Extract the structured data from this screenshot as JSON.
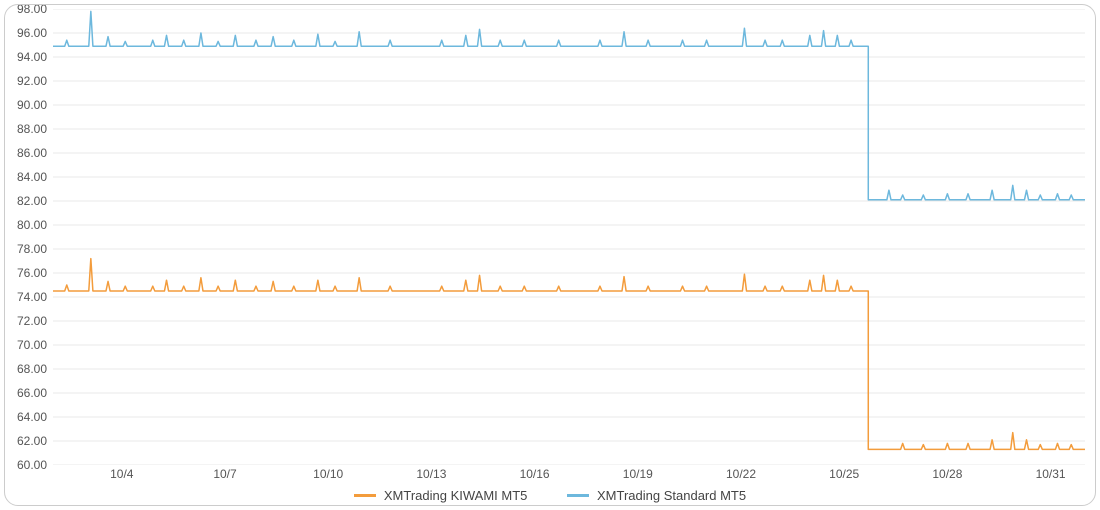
{
  "chart": {
    "type": "line",
    "background_color": "#ffffff",
    "border_color": "#cccccc",
    "grid_color": "#e8e8e8",
    "label_color": "#555555",
    "label_fontsize": 12,
    "ylim": [
      60,
      98
    ],
    "ytick_step": 2,
    "yticks": [
      60,
      62,
      64,
      66,
      68,
      70,
      72,
      74,
      76,
      78,
      80,
      82,
      84,
      86,
      88,
      90,
      92,
      94,
      96,
      98
    ],
    "xlim": [
      0,
      30
    ],
    "xticks": [
      {
        "pos": 2,
        "label": "10/4"
      },
      {
        "pos": 5,
        "label": "10/7"
      },
      {
        "pos": 8,
        "label": "10/10"
      },
      {
        "pos": 11,
        "label": "10/13"
      },
      {
        "pos": 14,
        "label": "10/16"
      },
      {
        "pos": 17,
        "label": "10/19"
      },
      {
        "pos": 20,
        "label": "10/22"
      },
      {
        "pos": 23,
        "label": "10/25"
      },
      {
        "pos": 26,
        "label": "10/28"
      },
      {
        "pos": 29,
        "label": "10/31"
      }
    ],
    "series": [
      {
        "name": "XMTrading KIWAMI MT5",
        "color": "#f39c3c",
        "line_width": 1.5,
        "baseline1": 74.5,
        "baseline2": 61.3,
        "drop_at": 23.7,
        "spikes": [
          {
            "x": 0.4,
            "h": 0.5
          },
          {
            "x": 1.1,
            "h": 2.7
          },
          {
            "x": 1.6,
            "h": 0.8
          },
          {
            "x": 2.1,
            "h": 0.4
          },
          {
            "x": 2.9,
            "h": 0.4
          },
          {
            "x": 3.3,
            "h": 0.9
          },
          {
            "x": 3.8,
            "h": 0.4
          },
          {
            "x": 4.3,
            "h": 1.1
          },
          {
            "x": 4.8,
            "h": 0.4
          },
          {
            "x": 5.3,
            "h": 0.9
          },
          {
            "x": 5.9,
            "h": 0.4
          },
          {
            "x": 6.4,
            "h": 0.8
          },
          {
            "x": 7.0,
            "h": 0.4
          },
          {
            "x": 7.7,
            "h": 0.9
          },
          {
            "x": 8.2,
            "h": 0.4
          },
          {
            "x": 8.9,
            "h": 1.1
          },
          {
            "x": 9.8,
            "h": 0.4
          },
          {
            "x": 11.3,
            "h": 0.4
          },
          {
            "x": 12.0,
            "h": 0.9
          },
          {
            "x": 12.4,
            "h": 1.3
          },
          {
            "x": 13.0,
            "h": 0.4
          },
          {
            "x": 13.7,
            "h": 0.4
          },
          {
            "x": 14.7,
            "h": 0.4
          },
          {
            "x": 15.9,
            "h": 0.4
          },
          {
            "x": 16.6,
            "h": 1.2
          },
          {
            "x": 17.3,
            "h": 0.4
          },
          {
            "x": 18.3,
            "h": 0.4
          },
          {
            "x": 19.0,
            "h": 0.4
          },
          {
            "x": 20.1,
            "h": 1.4
          },
          {
            "x": 20.7,
            "h": 0.4
          },
          {
            "x": 21.2,
            "h": 0.4
          },
          {
            "x": 22.0,
            "h": 0.9
          },
          {
            "x": 22.4,
            "h": 1.3
          },
          {
            "x": 22.8,
            "h": 0.9
          },
          {
            "x": 23.2,
            "h": 0.4
          },
          {
            "x": 24.7,
            "h": 0.5
          },
          {
            "x": 25.3,
            "h": 0.4
          },
          {
            "x": 26.0,
            "h": 0.5
          },
          {
            "x": 26.6,
            "h": 0.5
          },
          {
            "x": 27.3,
            "h": 0.8
          },
          {
            "x": 27.9,
            "h": 1.4
          },
          {
            "x": 28.3,
            "h": 0.8
          },
          {
            "x": 28.7,
            "h": 0.4
          },
          {
            "x": 29.2,
            "h": 0.5
          },
          {
            "x": 29.6,
            "h": 0.4
          }
        ]
      },
      {
        "name": "XMTrading Standard MT5",
        "color": "#6db8dd",
        "line_width": 1.5,
        "baseline1": 94.9,
        "baseline2": 82.1,
        "drop_at": 23.7,
        "spikes": [
          {
            "x": 0.4,
            "h": 0.5
          },
          {
            "x": 1.1,
            "h": 2.9
          },
          {
            "x": 1.6,
            "h": 0.8
          },
          {
            "x": 2.1,
            "h": 0.4
          },
          {
            "x": 2.9,
            "h": 0.5
          },
          {
            "x": 3.3,
            "h": 0.9
          },
          {
            "x": 3.8,
            "h": 0.5
          },
          {
            "x": 4.3,
            "h": 1.1
          },
          {
            "x": 4.8,
            "h": 0.4
          },
          {
            "x": 5.3,
            "h": 0.9
          },
          {
            "x": 5.9,
            "h": 0.5
          },
          {
            "x": 6.4,
            "h": 0.8
          },
          {
            "x": 7.0,
            "h": 0.5
          },
          {
            "x": 7.7,
            "h": 1.0
          },
          {
            "x": 8.2,
            "h": 0.4
          },
          {
            "x": 8.9,
            "h": 1.2
          },
          {
            "x": 9.8,
            "h": 0.5
          },
          {
            "x": 11.3,
            "h": 0.5
          },
          {
            "x": 12.0,
            "h": 0.9
          },
          {
            "x": 12.4,
            "h": 1.4
          },
          {
            "x": 13.0,
            "h": 0.5
          },
          {
            "x": 13.7,
            "h": 0.5
          },
          {
            "x": 14.7,
            "h": 0.5
          },
          {
            "x": 15.9,
            "h": 0.5
          },
          {
            "x": 16.6,
            "h": 1.2
          },
          {
            "x": 17.3,
            "h": 0.5
          },
          {
            "x": 18.3,
            "h": 0.5
          },
          {
            "x": 19.0,
            "h": 0.5
          },
          {
            "x": 20.1,
            "h": 1.5
          },
          {
            "x": 20.7,
            "h": 0.5
          },
          {
            "x": 21.2,
            "h": 0.5
          },
          {
            "x": 22.0,
            "h": 0.9
          },
          {
            "x": 22.4,
            "h": 1.3
          },
          {
            "x": 22.8,
            "h": 0.9
          },
          {
            "x": 23.2,
            "h": 0.5
          },
          {
            "x": 24.3,
            "h": 0.8
          },
          {
            "x": 24.7,
            "h": 0.4
          },
          {
            "x": 25.3,
            "h": 0.4
          },
          {
            "x": 26.0,
            "h": 0.5
          },
          {
            "x": 26.6,
            "h": 0.5
          },
          {
            "x": 27.3,
            "h": 0.8
          },
          {
            "x": 27.9,
            "h": 1.2
          },
          {
            "x": 28.3,
            "h": 0.8
          },
          {
            "x": 28.7,
            "h": 0.4
          },
          {
            "x": 29.2,
            "h": 0.5
          },
          {
            "x": 29.6,
            "h": 0.4
          }
        ]
      }
    ],
    "legend_position": "bottom"
  }
}
